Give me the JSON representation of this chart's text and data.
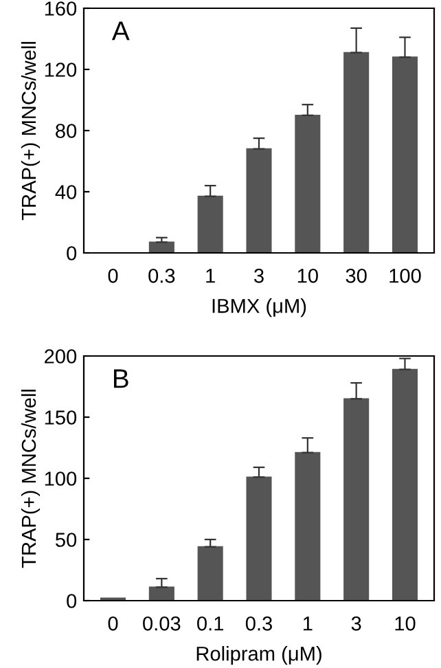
{
  "chart_data": [
    {
      "type": "bar",
      "categories": [
        "0",
        "0.3",
        "1",
        "3",
        "10",
        "30",
        "100"
      ],
      "xlabel": "IBMX (μM)",
      "ylabel": "TRAP(+) MNCs/well",
      "annotations": [
        "A"
      ],
      "values": [
        0,
        7,
        37,
        68,
        90,
        131,
        128
      ],
      "color": "#555555",
      "errors": [
        null,
        [
          7,
          10
        ],
        [
          37,
          44
        ],
        [
          68,
          75
        ],
        [
          90,
          97
        ],
        [
          131,
          147
        ],
        [
          128,
          141
        ]
      ],
      "ylim": [
        0,
        160
      ],
      "yticks": [
        0,
        40,
        80,
        120,
        160
      ],
      "grid": false,
      "legend": false
    },
    {
      "type": "bar",
      "categories": [
        "0",
        "0.03",
        "0.1",
        "0.3",
        "1",
        "3",
        "10"
      ],
      "xlabel": "Rolipram (μM)",
      "ylabel": "TRAP(+) MNCs/well",
      "annotations": [
        "B"
      ],
      "values": [
        2,
        11,
        44,
        101,
        121,
        165,
        189
      ],
      "color": "#555555",
      "errors": [
        null,
        [
          11,
          18
        ],
        [
          44,
          50
        ],
        [
          101,
          109
        ],
        [
          121,
          133
        ],
        [
          165,
          178
        ],
        [
          189,
          198
        ]
      ],
      "ylim": [
        0,
        200
      ],
      "yticks": [
        0,
        50,
        100,
        150,
        200
      ],
      "grid": false,
      "legend": false
    }
  ]
}
